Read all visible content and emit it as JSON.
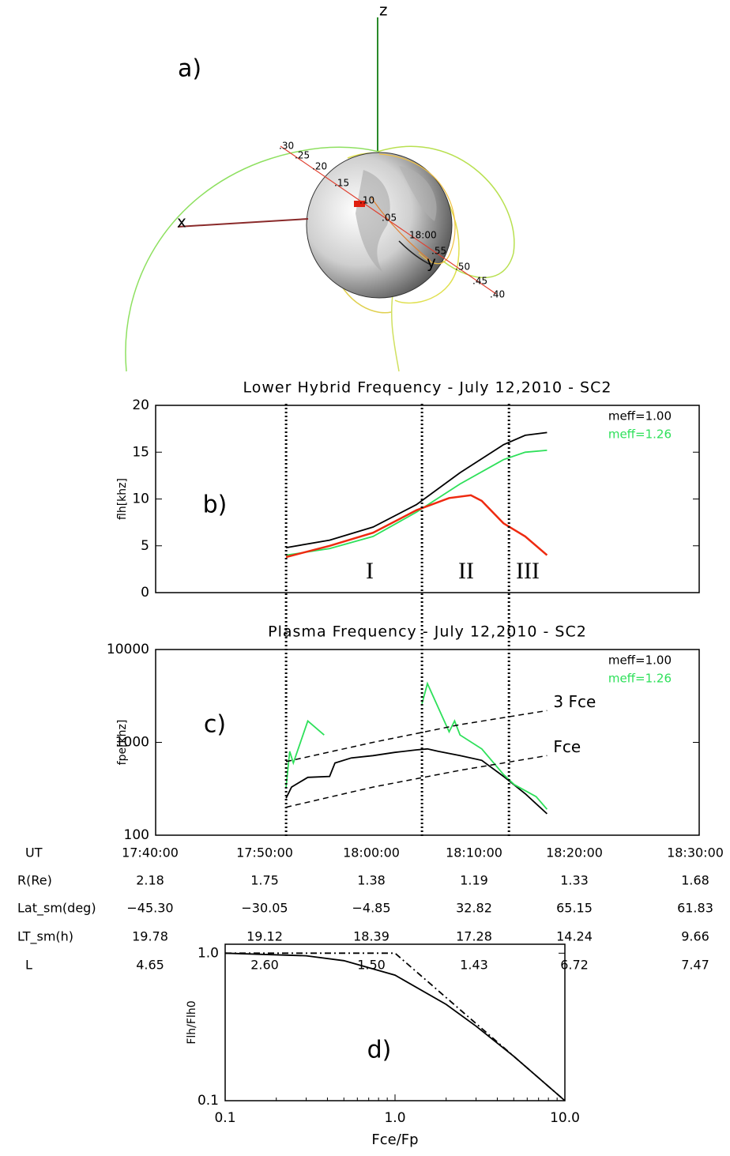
{
  "orbit_diagram": {
    "label": "a)",
    "axis_labels": {
      "x": "x",
      "y": "y",
      "z": "z"
    },
    "time_labels": [
      ".30",
      ".25",
      ".20",
      ".15",
      ".10",
      ".05",
      "18:00",
      ".55",
      ".50",
      ".45",
      ".40"
    ]
  },
  "chart_data": [
    {
      "type": "line",
      "title": "Lower Hybrid Frequency - July 12,2010 - SC2",
      "y_label": "flh[khz]",
      "xlim": [
        "17:40:00",
        "18:30:00"
      ],
      "ylim": [
        0,
        20
      ],
      "yticks": [
        0,
        5,
        10,
        15,
        20
      ],
      "legend": "upper right",
      "annotations": [
        "b)",
        "I",
        "II",
        "III"
      ],
      "event_times": [
        "17:52:00",
        "18:04:30",
        "18:12:30"
      ],
      "series": [
        {
          "name": "meff=1.00",
          "color": "#000000",
          "x": [
            "17:52:00",
            "17:56:00",
            "18:00:00",
            "18:04:00",
            "18:08:00",
            "18:12:00",
            "18:14:00",
            "18:16:00"
          ],
          "values": [
            4.8,
            5.6,
            7.0,
            9.4,
            12.8,
            15.8,
            16.8,
            17.1
          ]
        },
        {
          "name": "meff=1.26",
          "color": "#2ee05a",
          "x": [
            "17:52:00",
            "17:56:00",
            "18:00:00",
            "18:04:00",
            "18:08:00",
            "18:12:00",
            "18:14:00",
            "18:16:00"
          ],
          "values": [
            4.0,
            4.7,
            6.0,
            8.6,
            11.6,
            14.2,
            15.0,
            15.2
          ]
        },
        {
          "color": "#ee2a10",
          "x": [
            "17:52:00",
            "17:56:00",
            "18:00:00",
            "18:04:00",
            "18:07:00",
            "18:09:00",
            "18:10:00",
            "18:12:00",
            "18:14:00",
            "18:16:00"
          ],
          "values": [
            3.8,
            5.0,
            6.4,
            8.8,
            10.1,
            10.4,
            9.8,
            7.4,
            6.0,
            4.0
          ]
        }
      ]
    },
    {
      "type": "line",
      "title": "Plasma Frequency - July 12,2010 - SC2",
      "y_label": "fpe[khz]",
      "log_y": true,
      "xlim": [
        "17:40:00",
        "18:30:00"
      ],
      "ylim": [
        100,
        10000
      ],
      "yticks": [
        100,
        1000,
        10000
      ],
      "legend": "upper right",
      "annotations": [
        "c)"
      ],
      "series": [
        {
          "name": "meff=1.00",
          "color": "#000000",
          "x": [
            "17:52:00",
            "17:52:30",
            "17:54:00",
            "17:56:00",
            "17:56:30",
            "17:58:00",
            "18:00:00",
            "18:02:00",
            "18:04:00",
            "18:05:00",
            "18:06:00",
            "18:08:00",
            "18:10:00",
            "18:12:00",
            "18:14:00",
            "18:16:00"
          ],
          "values": [
            250,
            330,
            420,
            430,
            600,
            680,
            720,
            780,
            830,
            850,
            800,
            720,
            640,
            430,
            280,
            170
          ]
        },
        {
          "name": "meff=1.26",
          "color": "#2ee05a",
          "x": [
            "17:52:00",
            "17:52:20",
            "17:52:40",
            "17:54:00",
            "17:55:30",
            "18:00:00",
            "18:04:30",
            "18:05:00",
            "18:07:00",
            "18:07:30",
            "18:08:00",
            "18:10:00",
            "18:12:00",
            "18:13:00",
            "18:15:00",
            "18:16:00"
          ],
          "values": [
            330,
            800,
            600,
            1700,
            1200,
            null,
            2600,
            4300,
            1300,
            1700,
            1200,
            850,
            450,
            350,
            260,
            190
          ]
        }
      ],
      "reference_lines": [
        {
          "label": "3 Fce",
          "x": [
            "17:52:00",
            "18:00:00",
            "18:08:00",
            "18:16:00"
          ],
          "values": [
            620,
            1000,
            1550,
            2200
          ]
        },
        {
          "label": "Fce",
          "x": [
            "17:52:00",
            "18:00:00",
            "18:08:00",
            "18:16:00"
          ],
          "values": [
            200,
            330,
            500,
            720
          ]
        }
      ]
    },
    {
      "type": "line",
      "x_label": "Fce/Fp",
      "y_label": "Flh/Flh0",
      "log_x": true,
      "log_y": true,
      "xlim": [
        0.1,
        10
      ],
      "ylim": [
        0.1,
        1.15
      ],
      "xticks": [
        0.1,
        {
          "value": 1,
          "label": "1.0"
        },
        {
          "value": 10,
          "label": "10.0"
        }
      ],
      "yticks": [
        0.1,
        {
          "value": 1,
          "label": "1.0"
        }
      ],
      "annotations": [
        "d)"
      ],
      "series": [
        {
          "color": "#000000",
          "style": "solid",
          "x": [
            0.1,
            0.3,
            0.5,
            1,
            2,
            3,
            5,
            10
          ],
          "values": [
            1.0,
            0.96,
            0.89,
            0.71,
            0.45,
            0.32,
            0.2,
            0.1
          ]
        },
        {
          "color": "#000000",
          "style": "dashdot",
          "x": [
            0.1,
            1,
            10
          ],
          "values": [
            1.0,
            1.0,
            0.1
          ]
        }
      ]
    }
  ],
  "ephemeris_table": {
    "rows": [
      [
        "UT",
        "17:40:00",
        "17:50:00",
        "18:00:00",
        "18:10:00",
        "18:20:00",
        "18:30:00"
      ],
      [
        "R(Re)",
        "2.18",
        "1.75",
        "1.38",
        "1.19",
        "1.33",
        "1.68"
      ],
      [
        "Lat_sm(deg)",
        "−45.30",
        "−30.05",
        "−4.85",
        "32.82",
        "65.15",
        "61.83"
      ],
      [
        "LT_sm(h)",
        "19.78",
        "19.12",
        "18.39",
        "17.28",
        "14.24",
        "9.66"
      ],
      [
        "L",
        "4.65",
        "2.60",
        "1.50",
        "1.43",
        "6.72",
        "7.47"
      ]
    ]
  }
}
